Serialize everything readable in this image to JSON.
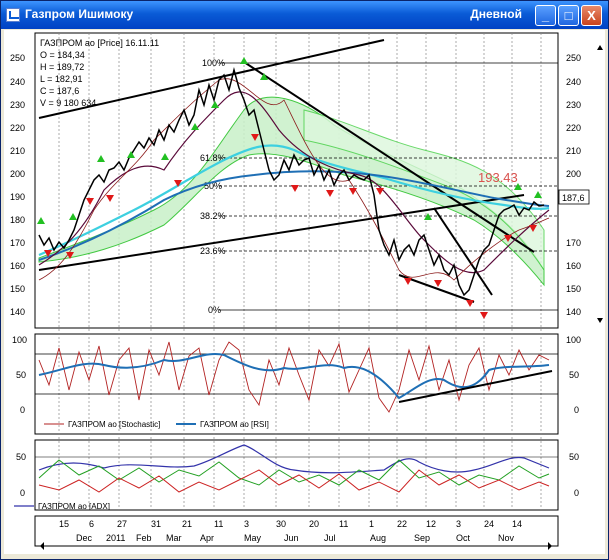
{
  "window": {
    "title": "Газпром Ишимоку",
    "period": "Дневной",
    "minimize_label": "_",
    "maximize_label": "□",
    "close_label": "X"
  },
  "price_panel": {
    "legend_title": "ГАЗПРОМ ао [Price] 16.11.11",
    "open": "O = 184,34",
    "high": "H = 189,72",
    "low": "L = 182,91",
    "close": "C = 187,6",
    "volume": "V = 9 180 634",
    "y_ticks": [
      "250",
      "240",
      "230",
      "220",
      "210",
      "200",
      "190",
      "180",
      "170",
      "160",
      "150",
      "140"
    ],
    "fib_levels": [
      "100%",
      "61.8%",
      "50%",
      "38.2%",
      "23.6%",
      "0%"
    ],
    "target_label": "193.43",
    "last_price_label": "187,6"
  },
  "oscillator_panel": {
    "y_ticks": [
      "100",
      "50",
      "0"
    ],
    "legend_stochastic": "ГАЗПРОМ ао [Stochastic]",
    "legend_rsi": "ГАЗПРОМ ао [RSI]"
  },
  "adx_panel": {
    "y_ticks": [
      "50",
      "0"
    ],
    "legend_adx": "ГАЗПРОМ ао [ADX]"
  },
  "time_axis": {
    "days": [
      "15",
      "6",
      "27",
      "31",
      "21",
      "11",
      "3",
      "30",
      "20",
      "11",
      "1",
      "22",
      "12",
      "3",
      "24",
      "14"
    ],
    "months": [
      "Dec",
      "2011",
      "Feb",
      "Mar",
      "Apr",
      "May",
      "Jun",
      "Jul",
      "Aug",
      "Sep",
      "Oct",
      "Nov"
    ]
  },
  "colors": {
    "titlebar": "#0a5bd6",
    "price_line": "#000000",
    "kijun": "#5a0a3a",
    "cloud_green": "#22c022",
    "cyan_ma": "#3dd0e0",
    "blue_ma": "#1f6fb5",
    "buy_marker": "#22c022",
    "sell_marker": "#e01818",
    "target_text": "#d9534f",
    "stochastic": "#b22222",
    "rsi": "#1f6fb5",
    "adx_plus": "#22a022",
    "adx_minus": "#cc2222",
    "adx": "#3333aa"
  }
}
